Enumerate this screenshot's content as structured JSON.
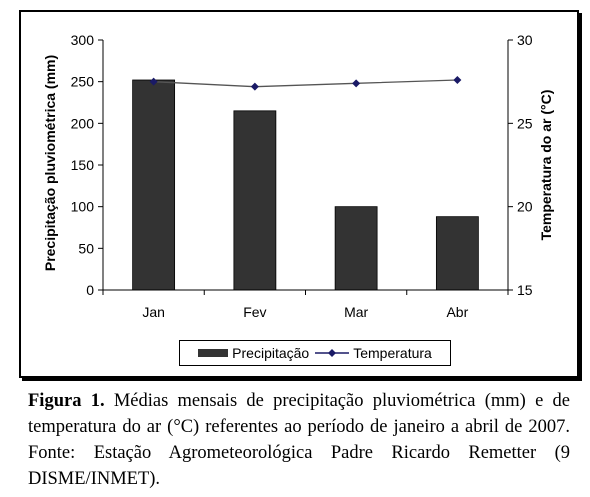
{
  "chart_data": {
    "type": "bar",
    "categories": [
      "Jan",
      "Fev",
      "Mar",
      "Abr"
    ],
    "series": [
      {
        "name": "Precipitação",
        "type": "bar",
        "axis": "left",
        "color": "#333333",
        "values": [
          252,
          215,
          100,
          88
        ]
      },
      {
        "name": "Temperatura",
        "type": "line",
        "axis": "right",
        "color": "#1a1a66",
        "values": [
          27.5,
          27.2,
          27.4,
          27.6
        ]
      }
    ],
    "ylabel": "Precipitação pluviométrica (mm)",
    "y2label": "Temperatura do ar (°C)",
    "ylim": [
      0,
      300
    ],
    "y2lim": [
      15,
      30
    ],
    "yticks": [
      "0",
      "50",
      "100",
      "150",
      "200",
      "250",
      "300"
    ],
    "y2ticks": [
      "15",
      "20",
      "25",
      "30"
    ],
    "legend_position": "bottom",
    "grid": false
  },
  "caption": {
    "label": "Figura 1.",
    "text": "Médias mensais de precipitação pluviométrica (mm) e de temperatura do ar (°C) referentes ao período de janeiro a abril de 2007. Fonte: Estação Agrometeorológica Padre Ricardo Remetter (9 DISME/INMET)."
  }
}
